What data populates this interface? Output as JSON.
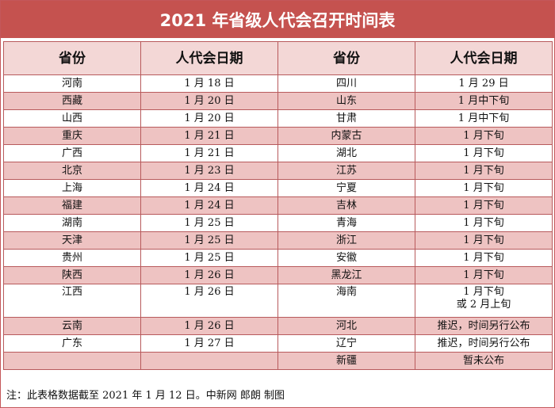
{
  "title": "2021 年省级人代会召开时间表",
  "headers": [
    "省份",
    "人代会日期",
    "省份",
    "人代会日期"
  ],
  "rows": [
    [
      "河南",
      "1 月 18 日",
      "四川",
      "1 月 29 日"
    ],
    [
      "西藏",
      "1 月 20 日",
      "山东",
      "1 月中下旬"
    ],
    [
      "山西",
      "1 月 20 日",
      "甘肃",
      "1 月中下旬"
    ],
    [
      "重庆",
      "1 月 21 日",
      "内蒙古",
      "1 月下旬"
    ],
    [
      "广西",
      "1 月 21 日",
      "湖北",
      "1 月下旬"
    ],
    [
      "北京",
      "1 月 23 日",
      "江苏",
      "1 月下旬"
    ],
    [
      "上海",
      "1 月 24 日",
      "宁夏",
      "1 月下旬"
    ],
    [
      "福建",
      "1 月 24 日",
      "吉林",
      "1 月下旬"
    ],
    [
      "湖南",
      "1 月 25 日",
      "青海",
      "1 月下旬"
    ],
    [
      "天津",
      "1 月 25 日",
      "浙江",
      "1 月下旬"
    ],
    [
      "贵州",
      "1 月 25 日",
      "安徽",
      "1 月下旬"
    ],
    [
      "陕西",
      "1 月 26 日",
      "黑龙江",
      "1 月下旬"
    ],
    [
      "江西",
      "1 月 26 日",
      "海南",
      "1 月下旬\n或 2 月上旬"
    ],
    [
      "云南",
      "1 月 26 日",
      "河北",
      "推迟，时间另行公布"
    ],
    [
      "广东",
      "1 月 27 日",
      "辽宁",
      "推迟，时间另行公布"
    ],
    [
      "",
      "",
      "新疆",
      "暂未公布"
    ]
  ],
  "note": "注：此表格数据截至 2021 年 1 月 12 日。中新网 郎朗  制图"
}
